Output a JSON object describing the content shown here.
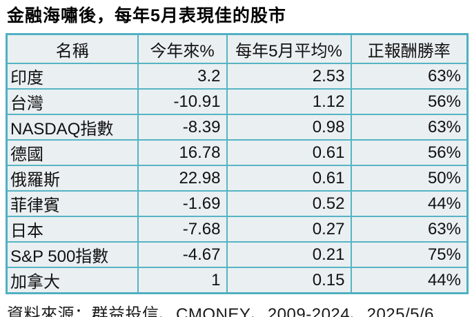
{
  "title": "金融海嘯後，每年5月表現佳的股市",
  "source": "資料來源：群益投信、CMONEY、2009-2024、2025/5/6",
  "colors": {
    "border_teal": "#55b4c4",
    "cell_background": "#eaeff1",
    "text": "#111111",
    "page_background": "#ffffff"
  },
  "table": {
    "headers": [
      "名稱",
      "今年來%",
      "每年5月平均%",
      "正報酬勝率"
    ],
    "rows": [
      {
        "name": "印度",
        "ytd": "3.2",
        "may_avg": "2.53",
        "win_rate": "63%"
      },
      {
        "name": "台灣",
        "ytd": "-10.91",
        "may_avg": "1.12",
        "win_rate": "56%"
      },
      {
        "name": "NASDAQ指數",
        "ytd": "-8.39",
        "may_avg": "0.98",
        "win_rate": "63%"
      },
      {
        "name": "德國",
        "ytd": "16.78",
        "may_avg": "0.61",
        "win_rate": "56%"
      },
      {
        "name": "俄羅斯",
        "ytd": "22.98",
        "may_avg": "0.61",
        "win_rate": "50%"
      },
      {
        "name": "菲律賓",
        "ytd": "-1.69",
        "may_avg": "0.52",
        "win_rate": "44%"
      },
      {
        "name": "日本",
        "ytd": "-7.68",
        "may_avg": "0.27",
        "win_rate": "63%"
      },
      {
        "name": "S&P 500指數",
        "ytd": "-4.67",
        "may_avg": "0.21",
        "win_rate": "75%"
      },
      {
        "name": "加拿大",
        "ytd": "1",
        "may_avg": "0.15",
        "win_rate": "44%"
      }
    ]
  },
  "chart_data": {
    "type": "table",
    "title": "金融海嘯後，每年5月表現佳的股市",
    "columns": [
      "名稱",
      "今年來%",
      "每年5月平均%",
      "正報酬勝率"
    ],
    "rows": [
      [
        "印度",
        3.2,
        2.53,
        "63%"
      ],
      [
        "台灣",
        -10.91,
        1.12,
        "56%"
      ],
      [
        "NASDAQ指數",
        -8.39,
        0.98,
        "63%"
      ],
      [
        "德國",
        16.78,
        0.61,
        "56%"
      ],
      [
        "俄羅斯",
        22.98,
        0.61,
        "50%"
      ],
      [
        "菲律賓",
        -1.69,
        0.52,
        "44%"
      ],
      [
        "日本",
        -7.68,
        0.27,
        "63%"
      ],
      [
        "S&P 500指數",
        -4.67,
        0.21,
        "75%"
      ],
      [
        "加拿大",
        1,
        0.15,
        "44%"
      ]
    ],
    "source": "資料來源：群益投信、CMONEY、2009-2024、2025/5/6"
  }
}
